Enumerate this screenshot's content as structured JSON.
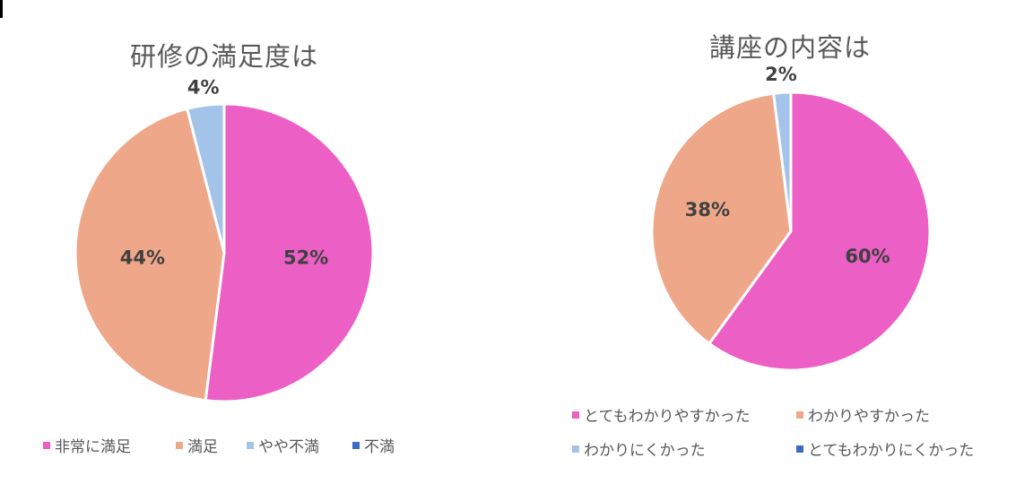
{
  "chart_data": [
    {
      "type": "pie",
      "title": "研修の満足度は",
      "categories": [
        "非常に満足",
        "満足",
        "やや不満",
        "不満"
      ],
      "values": [
        52,
        44,
        4,
        0
      ],
      "data_labels": [
        "52%",
        "44%",
        "4%",
        ""
      ],
      "colors": [
        "#EC5FC5",
        "#EFA78A",
        "#A3C4E8",
        "#3A6CC2"
      ],
      "legend_position": "bottom"
    },
    {
      "type": "pie",
      "title": "講座の内容は",
      "categories": [
        "とてもわかりやすかった",
        "わかりやすかった",
        "わかりにくかった",
        "とてもわかりにくかった"
      ],
      "values": [
        60,
        38,
        2,
        0
      ],
      "data_labels": [
        "60%",
        "38%",
        "2%",
        ""
      ],
      "colors": [
        "#EC5FC5",
        "#EFA78A",
        "#A3C4E8",
        "#3A6CC2"
      ],
      "legend_position": "bottom"
    }
  ]
}
